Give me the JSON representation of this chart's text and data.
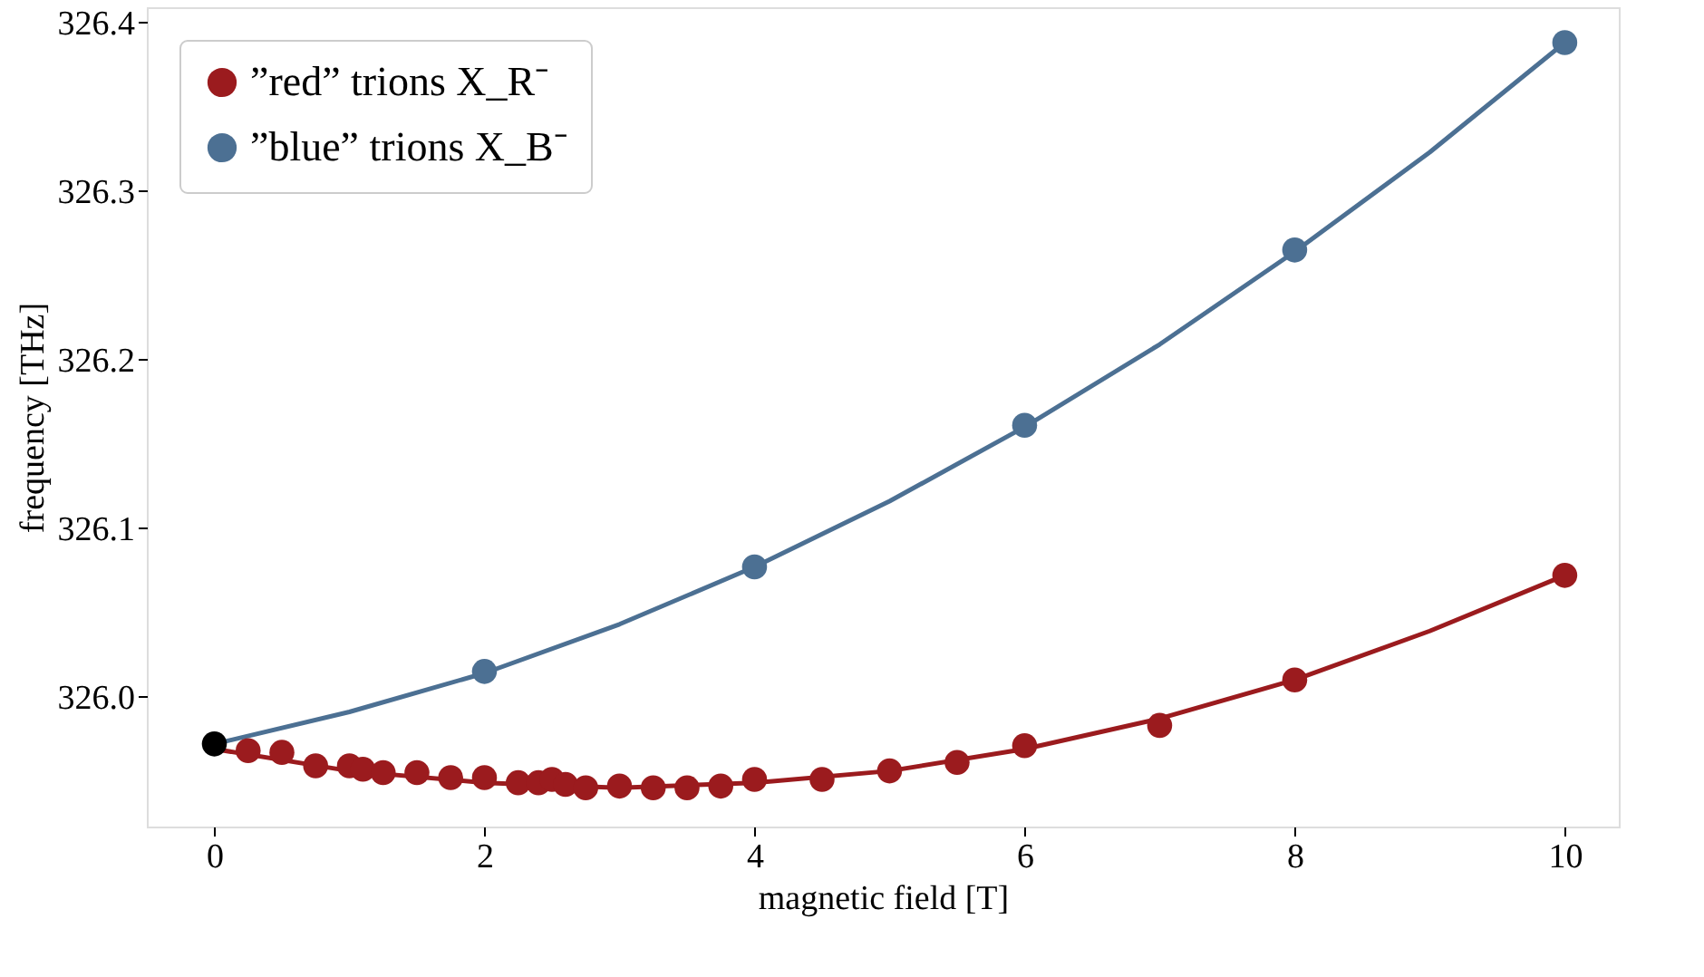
{
  "chart_data": {
    "type": "scatter",
    "xlabel": "magnetic field [T]",
    "ylabel": "frequency [THz]",
    "xlim": [
      -0.5,
      10.4
    ],
    "ylim": [
      325.923,
      326.409
    ],
    "xticks": [
      0,
      2,
      4,
      6,
      8,
      10
    ],
    "yticks": [
      {
        "value": 326,
        "label": "326.0"
      },
      {
        "value": 326.1,
        "label": "326.1"
      },
      {
        "value": 326.2,
        "label": "326.2"
      },
      {
        "value": 326.3,
        "label": "326.3"
      },
      {
        "value": 326.4,
        "label": "326.4"
      }
    ],
    "grid": false,
    "legend": "top left",
    "marker": "circle",
    "series": [
      {
        "type": "line",
        "marker": "none",
        "color": "#9b1b1e",
        "x": [
          0,
          1,
          2,
          3,
          4,
          5,
          6,
          7,
          8,
          9,
          10
        ],
        "values": [
          325.969,
          325.956,
          325.949,
          325.946,
          325.949,
          325.956,
          325.969,
          325.987,
          326.01,
          326.039,
          326.072
        ]
      },
      {
        "type": "line",
        "marker": "none",
        "color": "#4c7093",
        "x": [
          0,
          1,
          2,
          3,
          4,
          5,
          6,
          7,
          8,
          9,
          10
        ],
        "values": [
          325.972,
          325.991,
          326.014,
          326.043,
          326.077,
          326.116,
          326.16,
          326.209,
          326.264,
          326.323,
          326.388
        ]
      },
      {
        "name": "”red” trions X_R⁻",
        "type": "scatter",
        "color": "#9b1b1e",
        "x": [
          0.25,
          0.5,
          0.75,
          1.0,
          1.1,
          1.25,
          1.5,
          1.75,
          2.0,
          2.25,
          2.4,
          2.5,
          2.6,
          2.75,
          3.0,
          3.25,
          3.5,
          3.75,
          4.0,
          4.5,
          5.0,
          5.5,
          6.0,
          7.0,
          8.0,
          10.0
        ],
        "values": [
          325.968,
          325.967,
          325.959,
          325.959,
          325.957,
          325.955,
          325.955,
          325.952,
          325.952,
          325.949,
          325.949,
          325.951,
          325.948,
          325.946,
          325.947,
          325.946,
          325.946,
          325.947,
          325.951,
          325.951,
          325.956,
          325.961,
          325.971,
          325.983,
          326.01,
          326.072
        ]
      },
      {
        "name": "”blue” trions X_B⁻",
        "type": "scatter",
        "color": "#4c7093",
        "x": [
          2,
          4,
          6,
          8,
          10
        ],
        "values": [
          326.015,
          326.077,
          326.161,
          326.265,
          326.388
        ]
      },
      {
        "type": "scatter",
        "color": "#000000",
        "x": [
          0
        ],
        "values": [
          325.972
        ]
      }
    ]
  }
}
